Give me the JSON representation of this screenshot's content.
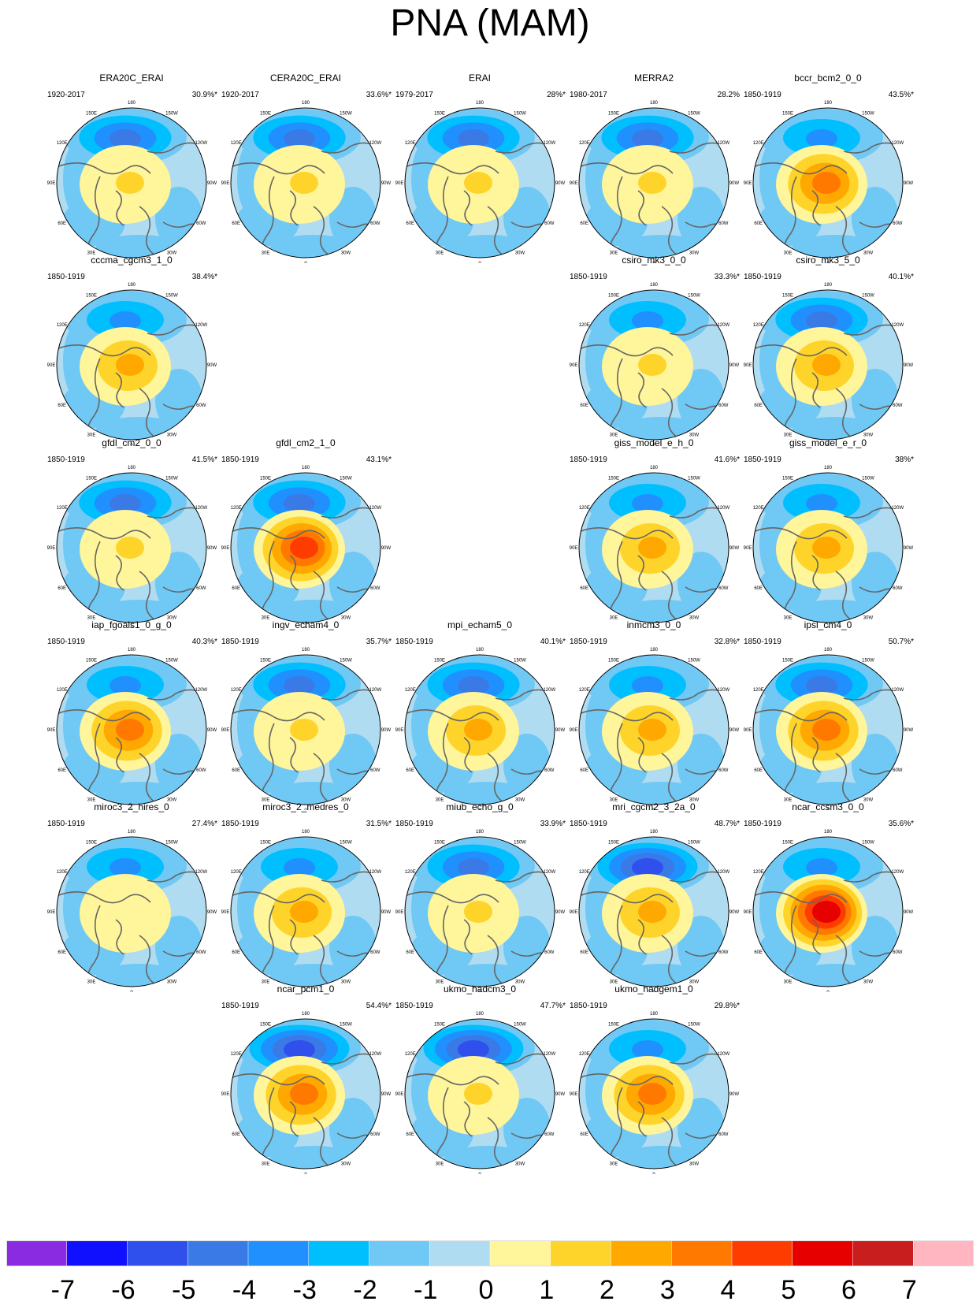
{
  "title": "PNA (MAM)",
  "chart_data": {
    "type": "map-panels",
    "projection": "north polar stereographic",
    "longitude_labels": [
      "180",
      "150W",
      "120W",
      "90W",
      "60W",
      "30W",
      "0",
      "30E",
      "60E",
      "90E",
      "120E",
      "150E"
    ],
    "panels": [
      {
        "name": "ERA20C_ERAI",
        "period": "1920-2017",
        "variance": "30.9%*",
        "row": 0,
        "col": 0,
        "neg_min": -4,
        "pos_max": 2
      },
      {
        "name": "CERA20C_ERAI",
        "period": "1920-2017",
        "variance": "33.6%*",
        "row": 0,
        "col": 1,
        "neg_min": -4,
        "pos_max": 2
      },
      {
        "name": "ERAI",
        "period": "1979-2017",
        "variance": "28%*",
        "row": 0,
        "col": 2,
        "neg_min": -4,
        "pos_max": 2
      },
      {
        "name": "MERRA2",
        "period": "1980-2017",
        "variance": "28.2%",
        "row": 0,
        "col": 3,
        "neg_min": -4,
        "pos_max": 2
      },
      {
        "name": "bccr_bcm2_0_0",
        "period": "1850-1919",
        "variance": "43.5%*",
        "row": 0,
        "col": 4,
        "neg_min": -3,
        "pos_max": 4
      },
      {
        "name": "cccma_cgcm3_1_0",
        "period": "1850-1919",
        "variance": "38.4%*",
        "row": 1,
        "col": 0,
        "neg_min": -3,
        "pos_max": 3
      },
      {
        "name": "csiro_mk3_0_0",
        "period": "1850-1919",
        "variance": "33.3%*",
        "row": 1,
        "col": 3,
        "neg_min": -3,
        "pos_max": 2
      },
      {
        "name": "csiro_mk3_5_0",
        "period": "1850-1919",
        "variance": "40.1%*",
        "row": 1,
        "col": 4,
        "neg_min": -4,
        "pos_max": 3
      },
      {
        "name": "gfdl_cm2_0_0",
        "period": "1850-1919",
        "variance": "41.5%*",
        "row": 2,
        "col": 0,
        "neg_min": -4,
        "pos_max": 2
      },
      {
        "name": "gfdl_cm2_1_0",
        "period": "1850-1919",
        "variance": "43.1%*",
        "row": 2,
        "col": 1,
        "neg_min": -4,
        "pos_max": 5
      },
      {
        "name": "giss_model_e_h_0",
        "period": "1850-1919",
        "variance": "41.6%*",
        "row": 2,
        "col": 3,
        "neg_min": -3,
        "pos_max": 3
      },
      {
        "name": "giss_model_e_r_0",
        "period": "1850-1919",
        "variance": "38%*",
        "row": 2,
        "col": 4,
        "neg_min": -3,
        "pos_max": 3
      },
      {
        "name": "iap_fgoals1_0_g_0",
        "period": "1850-1919",
        "variance": "40.3%*",
        "row": 3,
        "col": 0,
        "neg_min": -3,
        "pos_max": 4
      },
      {
        "name": "ingv_echam4_0",
        "period": "1850-1919",
        "variance": "35.7%*",
        "row": 3,
        "col": 1,
        "neg_min": -4,
        "pos_max": 2
      },
      {
        "name": "mpi_echam5_0",
        "period": "1850-1919",
        "variance": "40.1%*",
        "row": 3,
        "col": 2,
        "neg_min": -4,
        "pos_max": 3
      },
      {
        "name": "inmcm3_0_0",
        "period": "1850-1919",
        "variance": "32.8%*",
        "row": 3,
        "col": 3,
        "neg_min": -3,
        "pos_max": 3
      },
      {
        "name": "ipsl_cm4_0",
        "period": "1850-1919",
        "variance": "50.7%*",
        "row": 3,
        "col": 4,
        "neg_min": -4,
        "pos_max": 4
      },
      {
        "name": "miroc3_2_hires_0",
        "period": "1850-1919",
        "variance": "27.4%*",
        "row": 4,
        "col": 0,
        "neg_min": -3,
        "pos_max": 1
      },
      {
        "name": "miroc3_2_medres_0",
        "period": "1850-1919",
        "variance": "31.5%*",
        "row": 4,
        "col": 1,
        "neg_min": -3,
        "pos_max": 3
      },
      {
        "name": "miub_echo_g_0",
        "period": "1850-1919",
        "variance": "33.9%*",
        "row": 4,
        "col": 2,
        "neg_min": -4,
        "pos_max": 2
      },
      {
        "name": "mri_cgcm2_3_2a_0",
        "period": "1850-1919",
        "variance": "48.7%*",
        "row": 4,
        "col": 3,
        "neg_min": -5,
        "pos_max": 3
      },
      {
        "name": "ncar_ccsm3_0_0",
        "period": "1850-1919",
        "variance": "35.6%*",
        "row": 4,
        "col": 4,
        "neg_min": -3,
        "pos_max": 6
      },
      {
        "name": "ncar_pcm1_0",
        "period": "1850-1919",
        "variance": "54.4%*",
        "row": 5,
        "col": 1,
        "neg_min": -5,
        "pos_max": 4
      },
      {
        "name": "ukmo_hadcm3_0",
        "period": "1850-1919",
        "variance": "47.7%*",
        "row": 5,
        "col": 2,
        "neg_min": -5,
        "pos_max": 2
      },
      {
        "name": "ukmo_hadgem1_0",
        "period": "1850-1919",
        "variance": "29.8%*",
        "row": 5,
        "col": 3,
        "neg_min": -3,
        "pos_max": 4
      }
    ],
    "colorbar": {
      "colors": [
        "#8a2be2",
        "#1010ff",
        "#3050ee",
        "#3a7ae6",
        "#2090ff",
        "#00bfff",
        "#70c8f4",
        "#b0dcf2",
        "#fff59a",
        "#ffd42a",
        "#ffa800",
        "#ff7800",
        "#ff3c00",
        "#e60000",
        "#c81e1e",
        "#ffb6c1"
      ],
      "tick_labels": [
        "-7",
        "-6",
        "-5",
        "-4",
        "-3",
        "-2",
        "-1",
        "0",
        "1",
        "2",
        "3",
        "4",
        "5",
        "6",
        "7"
      ]
    }
  }
}
